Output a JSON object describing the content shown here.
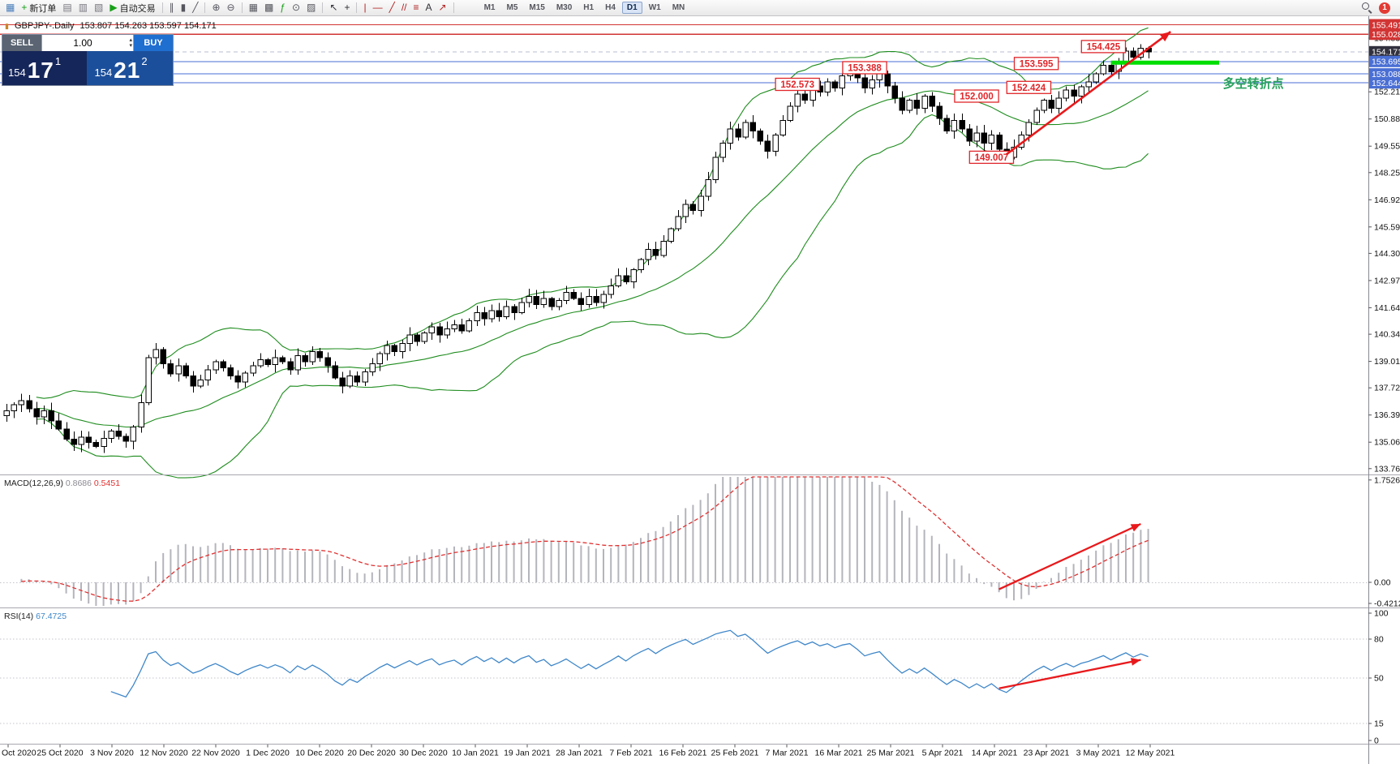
{
  "toolbar": {
    "items": [
      {
        "name": "charts-icon",
        "glyph": "▦",
        "color": "#4a7ebb"
      },
      {
        "name": "new-order-button",
        "glyph": "+",
        "color": "#18a018",
        "label": "新订单"
      },
      {
        "name": "market-watch-icon",
        "glyph": "▤",
        "color": "#777780"
      },
      {
        "name": "data-window-icon",
        "glyph": "▥",
        "color": "#777780"
      },
      {
        "name": "navigator-icon",
        "glyph": "▧",
        "color": "#777780"
      },
      {
        "name": "auto-trading-button",
        "glyph": "▶",
        "color": "#18a018",
        "label": "自动交易"
      },
      {
        "divider": true
      },
      {
        "name": "bar-chart-icon",
        "glyph": "∥",
        "color": "#55565e"
      },
      {
        "name": "candlestick-chart-icon",
        "glyph": "▮",
        "color": "#55565e"
      },
      {
        "name": "line-chart-icon",
        "glyph": "╱",
        "color": "#55565e"
      },
      {
        "divider": true
      },
      {
        "name": "zoom-in-icon",
        "glyph": "⊕",
        "color": "#55565e"
      },
      {
        "name": "zoom-out-icon",
        "glyph": "⊖",
        "color": "#55565e"
      },
      {
        "divider": true
      },
      {
        "name": "tile-windows-icon",
        "glyph": "▦",
        "color": "#55565e"
      },
      {
        "name": "cascade-windows-icon",
        "glyph": "▩",
        "color": "#55565e"
      },
      {
        "name": "indicators-icon",
        "glyph": "ƒ",
        "color": "#18a018"
      },
      {
        "name": "periods-icon",
        "glyph": "⊙",
        "color": "#55565e"
      },
      {
        "name": "templates-icon",
        "glyph": "▨",
        "color": "#55565e"
      },
      {
        "divider": true
      },
      {
        "name": "cursor-icon",
        "glyph": "↖",
        "color": "#303036"
      },
      {
        "name": "crosshair-icon",
        "glyph": "+",
        "color": "#303036"
      },
      {
        "divider": true
      },
      {
        "name": "vertical-line-icon",
        "glyph": "|",
        "color": "#b22222"
      },
      {
        "name": "horizontal-line-icon",
        "glyph": "—",
        "color": "#b22222"
      },
      {
        "name": "trendline-icon",
        "glyph": "╱",
        "color": "#b22222"
      },
      {
        "name": "equidistant-channel-icon",
        "glyph": "//",
        "color": "#b22222"
      },
      {
        "name": "fibonacci-icon",
        "glyph": "≡",
        "color": "#b22222"
      },
      {
        "name": "text-label-icon",
        "glyph": "A",
        "color": "#303036"
      },
      {
        "name": "arrows-tool-icon",
        "glyph": "↗",
        "color": "#b22222"
      },
      {
        "divider": true
      }
    ],
    "timeframes": [
      "M1",
      "M5",
      "M15",
      "M30",
      "H1",
      "H4",
      "D1",
      "W1",
      "MN"
    ],
    "active_timeframe": "D1",
    "notification_count": "1"
  },
  "quote_panel": {
    "title_icon_glyph": "▮",
    "symbol_period": "GBPJPY-.Daily",
    "ohlc_line": "153.807 154.263 153.597 154.171",
    "sell_label": "SELL",
    "buy_label": "BUY",
    "volume": "1.00",
    "volume_up_glyph": "▴",
    "volume_down_glyph": "▾",
    "bid": {
      "big_left": "154",
      "pips": "17",
      "fraction": "1"
    },
    "ask": {
      "big_left": "154",
      "pips": "21",
      "fraction": "2"
    }
  },
  "chart_data": {
    "type": "candlestick",
    "symbol": "GBPJPY",
    "period": "Daily",
    "closes": [
      136.6,
      136.9,
      137.1,
      136.7,
      136.3,
      136.6,
      136.1,
      135.7,
      135.2,
      134.95,
      135.3,
      135.05,
      134.85,
      135.25,
      135.6,
      135.35,
      135.1,
      135.8,
      137.0,
      139.2,
      139.6,
      138.9,
      138.4,
      138.8,
      138.3,
      137.8,
      138.1,
      138.6,
      139.0,
      138.7,
      138.3,
      138.0,
      138.45,
      138.8,
      139.1,
      138.85,
      139.2,
      139.0,
      138.6,
      139.3,
      139.0,
      139.5,
      139.2,
      138.8,
      138.2,
      137.8,
      138.3,
      138.0,
      138.5,
      138.9,
      139.4,
      139.8,
      139.5,
      139.9,
      140.3,
      140.0,
      140.4,
      140.7,
      140.3,
      140.6,
      140.8,
      140.5,
      141.0,
      141.4,
      141.1,
      141.5,
      141.2,
      141.7,
      141.4,
      141.9,
      142.2,
      141.8,
      142.1,
      141.7,
      142.0,
      142.4,
      142.1,
      141.8,
      142.2,
      141.9,
      142.3,
      142.7,
      143.2,
      142.9,
      143.5,
      144.0,
      144.5,
      144.2,
      144.9,
      145.5,
      146.1,
      146.7,
      146.4,
      147.1,
      147.9,
      149.0,
      149.7,
      150.4,
      150.0,
      150.7,
      150.3,
      149.8,
      149.3,
      150.1,
      150.8,
      151.5,
      152.1,
      151.8,
      152.5,
      152.2,
      152.7,
      152.4,
      153.0,
      153.3,
      152.9,
      152.4,
      152.8,
      153.1,
      152.5,
      151.9,
      151.3,
      151.8,
      151.4,
      152.0,
      151.5,
      150.9,
      150.3,
      150.8,
      150.4,
      149.8,
      150.2,
      149.7,
      150.1,
      149.4,
      149.0,
      149.5,
      150.1,
      150.7,
      151.3,
      151.8,
      151.4,
      151.9,
      152.3,
      152.0,
      152.45,
      152.7,
      153.1,
      153.5,
      153.2,
      153.7,
      154.2,
      153.9,
      154.35,
      154.17
    ],
    "bollinger": {
      "period": 20,
      "deviation": 2,
      "color": "#1e8c1e"
    },
    "macd": {
      "label": "MACD(12,26,9)",
      "main_value": "0.8686",
      "signal_value": "0.5451",
      "hist_color": "#b4b4bc",
      "signal_color": "#e03131",
      "scale": [
        "1.7526",
        "0.00",
        "-0.4212"
      ]
    },
    "rsi": {
      "label": "RSI(14)",
      "value": "67.4725",
      "color": "#3f87c9",
      "levels": [
        80,
        50,
        15
      ],
      "scale": [
        "100",
        "80",
        "50",
        "15",
        "0"
      ]
    },
    "y_axis_ticks": [
      "154.835",
      "152.210",
      "150.880",
      "149.550",
      "148.255",
      "146.925",
      "145.595",
      "144.300",
      "142.970",
      "141.640",
      "140.345",
      "139.015",
      "137.720",
      "136.390",
      "135.060",
      "133.765"
    ],
    "y_axis_boxes": [
      {
        "text": "155.491",
        "price": 155.491,
        "fill": "#d23434"
      },
      {
        "text": "155.028",
        "price": 155.028,
        "fill": "#d23434"
      },
      {
        "text": "154.171",
        "price": 154.171,
        "fill": "#31313f"
      },
      {
        "text": "153.695",
        "price": 153.695,
        "fill": "#4a6fd4"
      },
      {
        "text": "153.088",
        "price": 153.088,
        "fill": "#4a6fd4"
      },
      {
        "text": "152.644",
        "price": 152.644,
        "fill": "#4a6fd4"
      }
    ],
    "hlines": [
      {
        "price": 155.491,
        "color": "#d23434",
        "width": 1.2
      },
      {
        "price": 155.028,
        "color": "#d23434",
        "width": 1.2
      },
      {
        "price": 153.695,
        "color": "#4a6fd4",
        "width": 1
      },
      {
        "price": 153.088,
        "color": "#4a6fd4",
        "width": 1
      },
      {
        "price": 152.644,
        "color": "#4a6fd4",
        "width": 1
      },
      {
        "price": 154.171,
        "color": "#b9bed2",
        "width": 1,
        "dash": "5 4"
      }
    ],
    "x_axis_labels": [
      "Oct 2020",
      "25 Oct 2020",
      "3 Nov 2020",
      "12 Nov 2020",
      "22 Nov 2020",
      "1 Dec 2020",
      "10 Dec 2020",
      "20 Dec 2020",
      "30 Dec 2020",
      "10 Jan 2021",
      "19 Jan 2021",
      "28 Jan 2021",
      "7 Feb 2021",
      "16 Feb 2021",
      "25 Feb 2021",
      "7 Mar 2021",
      "16 Mar 2021",
      "25 Mar 2021",
      "5 Apr 2021",
      "14 Apr 2021",
      "23 Apr 2021",
      "3 May 2021",
      "12 May 2021"
    ],
    "callout_color": "#e0262a",
    "callouts": [
      {
        "text": "153.388",
        "index": 115,
        "price": 153.388
      },
      {
        "text": "152.573",
        "index": 106,
        "price": 152.573
      },
      {
        "text": "152.000",
        "index": 130,
        "price": 152.0
      },
      {
        "text": "152.424",
        "index": 137,
        "price": 152.424
      },
      {
        "text": "153.595",
        "index": 138,
        "price": 153.595
      },
      {
        "text": "154.425",
        "index": 147,
        "price": 154.425
      },
      {
        "text": "149.007",
        "index": 132,
        "price": 149.007
      }
    ],
    "arrow_color": "#e8191c",
    "arrows": {
      "main": {
        "from_index": 134,
        "from_price": 149.15,
        "to_index": 156,
        "to_price": 155.15
      },
      "macd": {
        "from_index": 133,
        "from_value": -0.12,
        "to_index": 152,
        "to_value": 1.0
      },
      "rsi": {
        "from_index": 133,
        "from_value": 42,
        "to_index": 152,
        "to_value": 64
      }
    },
    "support_segment": {
      "from_index": 148,
      "to_index": 162.5,
      "price": 153.64,
      "color": "#00dd00"
    },
    "turning_point": {
      "text": "多空转折点",
      "index": 163,
      "price": 152.62,
      "color": "#27a15c"
    }
  }
}
